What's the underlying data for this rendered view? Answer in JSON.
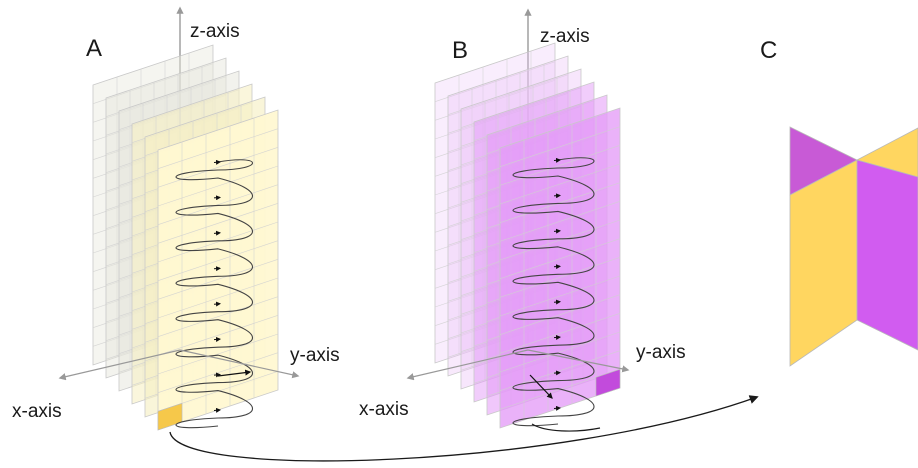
{
  "panels": [
    {
      "letter": "A",
      "color": "#ffef8f",
      "cell_color": "#f2c94c"
    },
    {
      "letter": "B",
      "color": "#d880ff",
      "cell_color": "#b23cd6"
    },
    {
      "letter": "C",
      "colors": [
        "#c85ad6",
        "#ffd660"
      ]
    }
  ],
  "axes": {
    "z": "z-axis",
    "y": "y-axis",
    "x": "x-axis"
  },
  "colors": {
    "axis_gray": "#9a9a9a",
    "arrow": "#222222",
    "yellow": "#ffd95a",
    "purple": "#d15cf0"
  }
}
